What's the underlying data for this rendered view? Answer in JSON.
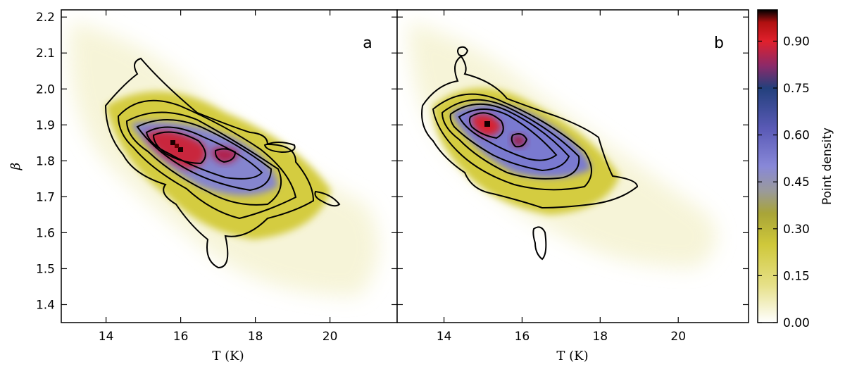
{
  "chart_data": {
    "type": "heatmap",
    "shared_ylabel": "β",
    "ylim": [
      1.35,
      2.22
    ],
    "yticks": [
      "1.4",
      "1.5",
      "1.6",
      "1.7",
      "1.8",
      "1.9",
      "2.0",
      "2.1",
      "2.2"
    ],
    "colorbar": {
      "label": "Point density",
      "range": [
        0.0,
        1.0
      ],
      "ticks": [
        "0.00",
        "0.15",
        "0.30",
        "0.45",
        "0.60",
        "0.75",
        "0.90"
      ],
      "colormap": [
        "#ffffff",
        "#d6d030",
        "#b8b020",
        "#9090d0",
        "#5a5ab8",
        "#2a3a8a",
        "#e02030",
        "#000000"
      ]
    },
    "panels": [
      {
        "label": "a",
        "xlabel": "T (K)",
        "xlim": [
          12.8,
          21.8
        ],
        "xticks": [
          "14",
          "16",
          "18",
          "20"
        ],
        "peak": {
          "x": 15.9,
          "y": 1.835,
          "density": 1.0
        },
        "secondary_peak": {
          "x": 17.2,
          "y": 1.815,
          "density": 0.88
        }
      },
      {
        "label": "b",
        "xlabel": "T (K)",
        "xlim": [
          12.8,
          21.8
        ],
        "xticks": [
          "14",
          "16",
          "18",
          "20"
        ],
        "peak": {
          "x": 15.1,
          "y": 1.9,
          "density": 1.0
        },
        "secondary_peak": {
          "x": 16.0,
          "y": 1.855,
          "density": 0.82
        }
      }
    ]
  }
}
